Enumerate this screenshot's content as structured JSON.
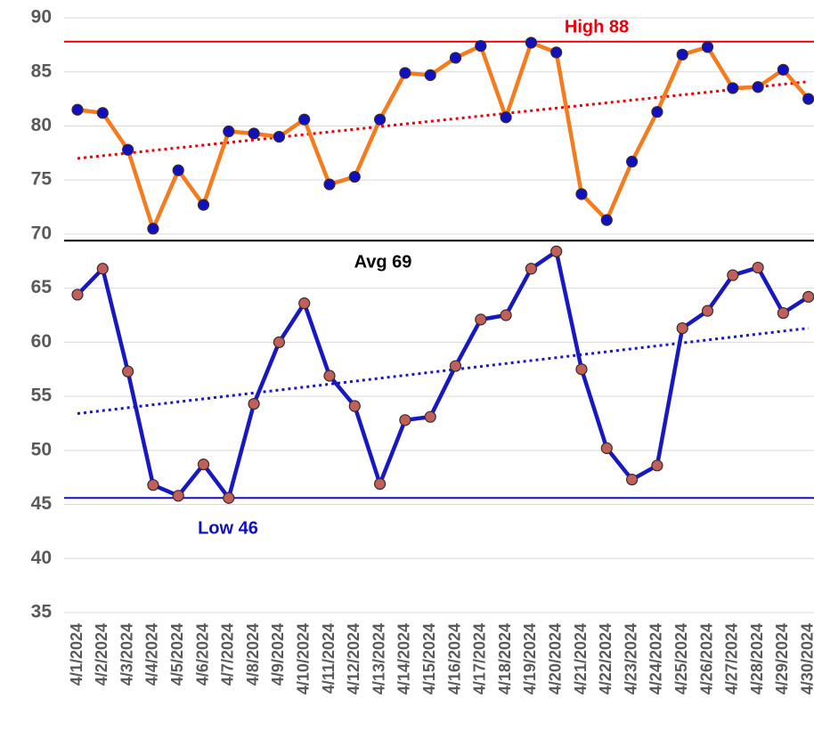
{
  "chart_data": {
    "type": "line",
    "categories": [
      "4/1/2024",
      "4/2/2024",
      "4/3/2024",
      "4/4/2024",
      "4/5/2024",
      "4/6/2024",
      "4/7/2024",
      "4/8/2024",
      "4/9/2024",
      "4/10/2024",
      "4/11/2024",
      "4/12/2024",
      "4/13/2024",
      "4/14/2024",
      "4/15/2024",
      "4/16/2024",
      "4/17/2024",
      "4/18/2024",
      "4/19/2024",
      "4/20/2024",
      "4/21/2024",
      "4/22/2024",
      "4/23/2024",
      "4/24/2024",
      "4/25/2024",
      "4/26/2024",
      "4/27/2024",
      "4/28/2024",
      "4/29/2024",
      "4/30/2024"
    ],
    "series": [
      {
        "color": "#f47c20",
        "marker_color": "#1010c0",
        "values": [
          81.5,
          81.2,
          77.8,
          70.5,
          75.9,
          72.7,
          79.5,
          79.3,
          79.0,
          80.6,
          74.6,
          75.3,
          80.6,
          84.9,
          84.7,
          86.3,
          87.4,
          80.8,
          87.7,
          86.8,
          73.7,
          71.3,
          76.7,
          81.3,
          86.6,
          87.3,
          83.5,
          83.6,
          85.2,
          82.5
        ],
        "trend": [
          77.0,
          84.1
        ]
      },
      {
        "color": "#1818c0",
        "marker_color": "#c0605a",
        "values": [
          64.4,
          66.8,
          57.3,
          46.8,
          45.8,
          48.7,
          45.6,
          54.3,
          60.0,
          63.6,
          56.9,
          54.1,
          46.9,
          52.8,
          53.1,
          57.8,
          62.1,
          62.5,
          66.8,
          68.4,
          57.5,
          50.2,
          47.3,
          48.6,
          61.3,
          62.9,
          66.2,
          66.9,
          62.7,
          64.2
        ],
        "trend": [
          53.4,
          61.3
        ]
      }
    ],
    "reference_lines": [
      {
        "label": "High 88",
        "value": 87.8,
        "color": "#e8000b"
      },
      {
        "label": "Avg 69",
        "value": 69.4,
        "color": "#000000"
      },
      {
        "label": "Low 46",
        "value": 45.6,
        "color": "#1010c0"
      }
    ],
    "ylim": [
      35,
      90
    ],
    "yticks": [
      35,
      40,
      45,
      50,
      55,
      60,
      65,
      70,
      75,
      80,
      85,
      90
    ],
    "grid": true
  }
}
